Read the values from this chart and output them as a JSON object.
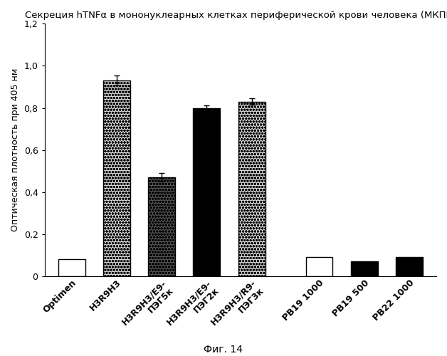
{
  "title": "Секреция hTNFα в мононуклеарных клетках периферической крови человека (МКПК)",
  "ylabel": "Оптическая плотность при 405 нм",
  "caption": "Фиг. 14",
  "categories": [
    "Optimen",
    "H3R9H3",
    "H3R9H3/E9-\nПЭГ5к",
    "H3R9H3/E9-\nПЭГ2к",
    "H3R9H3/R9-\nПЭГ3к",
    "PB19 1000",
    "PB19 500",
    "PB22 1000"
  ],
  "values": [
    0.08,
    0.93,
    0.47,
    0.8,
    0.83,
    0.09,
    0.07,
    0.09
  ],
  "errors": [
    0.0,
    0.025,
    0.02,
    0.012,
    0.015,
    0.0,
    0.0,
    0.0
  ],
  "bar_styles": [
    "white",
    "light_speckle",
    "dark_speckle",
    "black",
    "light_speckle",
    "white",
    "black",
    "black"
  ],
  "x_positions": [
    0,
    1,
    2,
    3,
    4,
    5.5,
    6.5,
    7.5
  ],
  "ylim": [
    0,
    1.2
  ],
  "yticks": [
    0,
    0.2,
    0.4,
    0.6,
    0.8,
    1.0,
    1.2
  ],
  "figsize": [
    6.28,
    5.0
  ],
  "dpi": 100,
  "title_fontsize": 9.5,
  "axis_fontsize": 9,
  "tick_fontsize": 9,
  "bar_width": 0.6
}
